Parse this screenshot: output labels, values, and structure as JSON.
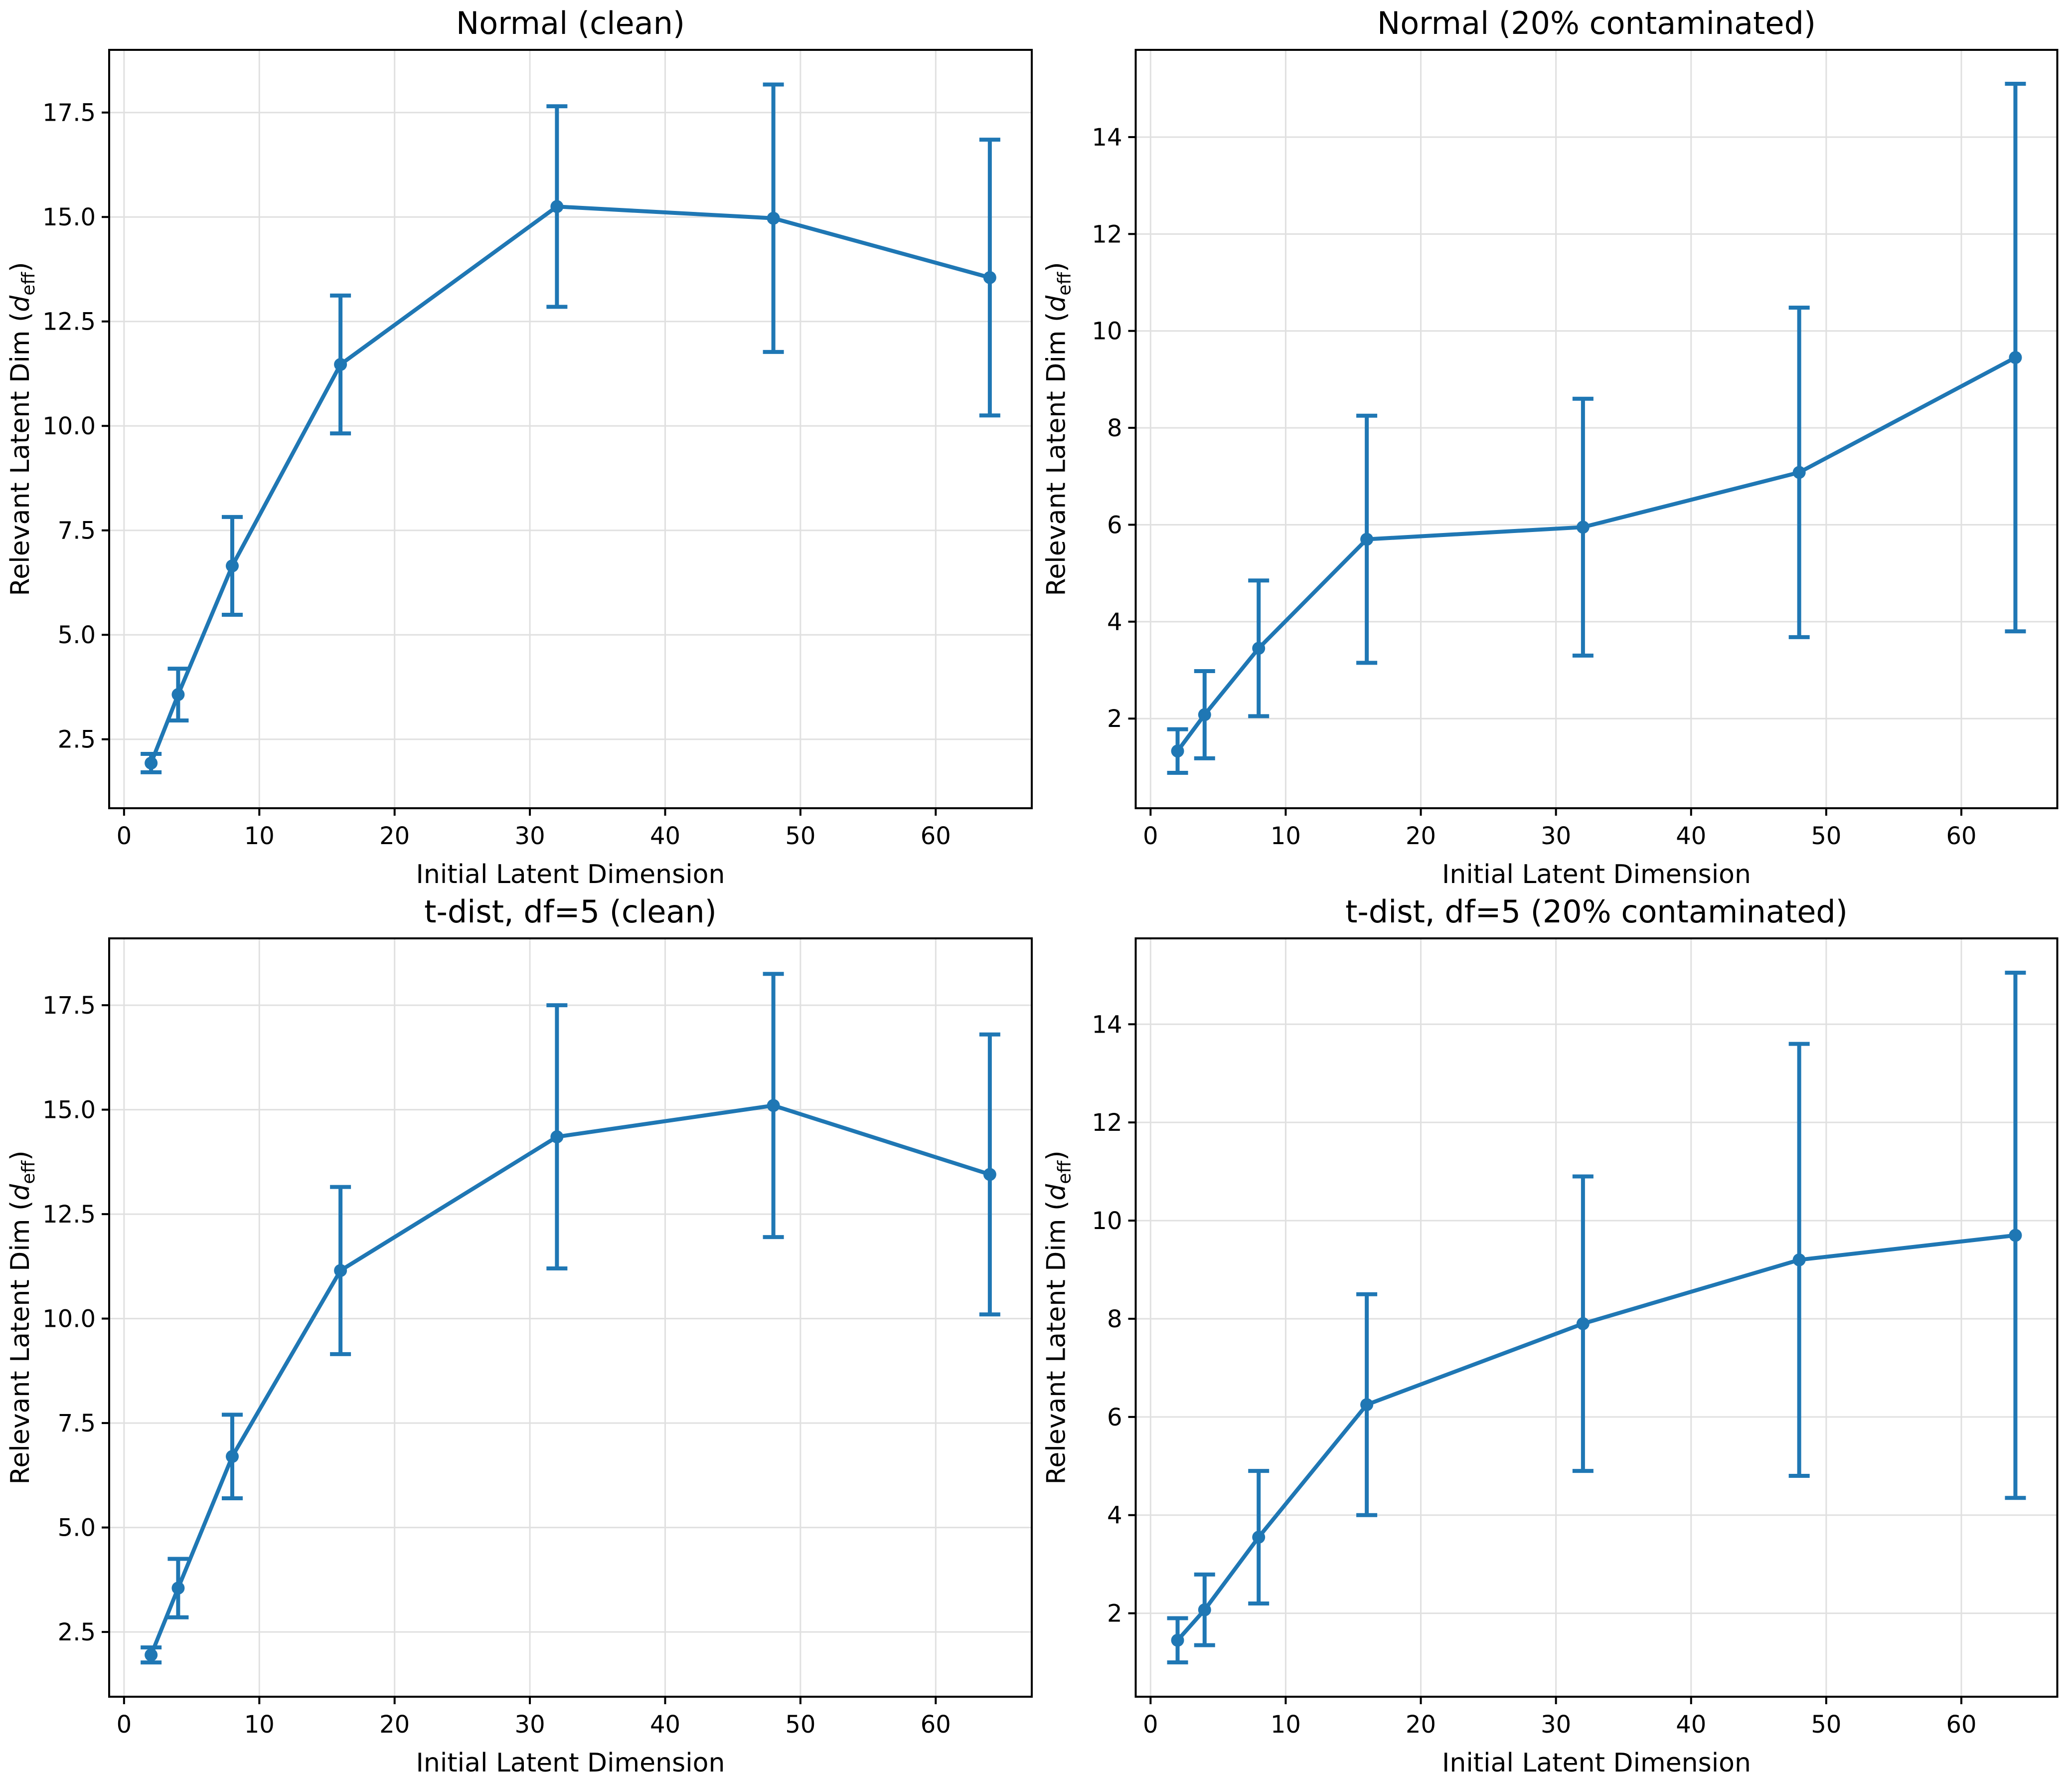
{
  "figure": {
    "background": "#ffffff",
    "accent_color": "#1f77b4",
    "grid_color": "#e0e0e0",
    "spine_color": "#000000",
    "layout": "2x2 grid of errorbar line plots"
  },
  "chart_data": [
    {
      "type": "line",
      "name": "normal-clean",
      "title": "Normal (clean)",
      "xlabel": "Initial Latent Dimension",
      "ylabel": "Relevant Latent Dim (d_eff)",
      "ylabel_parts": {
        "prefix": "Relevant Latent Dim (",
        "var": "d",
        "sub": "eff",
        "suffix": ")"
      },
      "x": [
        2,
        4,
        8,
        16,
        32,
        48,
        64
      ],
      "y": [
        1.93,
        3.57,
        6.65,
        11.47,
        15.25,
        14.97,
        13.55
      ],
      "yerr": [
        0.22,
        0.62,
        1.17,
        1.65,
        2.4,
        3.2,
        3.3
      ],
      "xticks": [
        0,
        10,
        20,
        30,
        40,
        50,
        60
      ],
      "xtick_labels": [
        "0",
        "10",
        "20",
        "30",
        "40",
        "50",
        "60"
      ],
      "yticks": [
        2.5,
        5.0,
        7.5,
        10.0,
        12.5,
        15.0,
        17.5
      ],
      "ytick_labels": [
        "2.5",
        "5.0",
        "7.5",
        "10.0",
        "12.5",
        "15.0",
        "17.5"
      ],
      "xlim": [
        -1.1,
        67.1
      ],
      "ylim": [
        0.85,
        19.0
      ],
      "grid": true,
      "legend": null,
      "line_color": "#1f77b4",
      "marker": "o"
    },
    {
      "type": "line",
      "name": "normal-contaminated",
      "title": "Normal (20% contaminated)",
      "xlabel": "Initial Latent Dimension",
      "ylabel": "Relevant Latent Dim (d_eff)",
      "ylabel_parts": {
        "prefix": "Relevant Latent Dim (",
        "var": "d",
        "sub": "eff",
        "suffix": ")"
      },
      "x": [
        2,
        4,
        8,
        16,
        32,
        48,
        64
      ],
      "y": [
        1.33,
        2.08,
        3.45,
        5.7,
        5.95,
        7.08,
        9.45
      ],
      "yerr": [
        0.45,
        0.9,
        1.4,
        2.55,
        2.65,
        3.4,
        5.65
      ],
      "xticks": [
        0,
        10,
        20,
        30,
        40,
        50,
        60
      ],
      "xtick_labels": [
        "0",
        "10",
        "20",
        "30",
        "40",
        "50",
        "60"
      ],
      "yticks": [
        2,
        4,
        6,
        8,
        10,
        12,
        14
      ],
      "ytick_labels": [
        "2",
        "4",
        "6",
        "8",
        "10",
        "12",
        "14"
      ],
      "xlim": [
        -1.1,
        67.1
      ],
      "ylim": [
        0.15,
        15.8
      ],
      "grid": true,
      "legend": null,
      "line_color": "#1f77b4",
      "marker": "o"
    },
    {
      "type": "line",
      "name": "tdist-clean",
      "title": "t-dist, df=5 (clean)",
      "xlabel": "Initial Latent Dimension",
      "ylabel": "Relevant Latent Dim (d_eff)",
      "ylabel_parts": {
        "prefix": "Relevant Latent Dim (",
        "var": "d",
        "sub": "eff",
        "suffix": ")"
      },
      "x": [
        2,
        4,
        8,
        16,
        32,
        48,
        64
      ],
      "y": [
        1.95,
        3.55,
        6.7,
        11.15,
        14.35,
        15.1,
        13.45
      ],
      "yerr": [
        0.18,
        0.7,
        1.0,
        2.0,
        3.15,
        3.15,
        3.35
      ],
      "xticks": [
        0,
        10,
        20,
        30,
        40,
        50,
        60
      ],
      "xtick_labels": [
        "0",
        "10",
        "20",
        "30",
        "40",
        "50",
        "60"
      ],
      "yticks": [
        2.5,
        5.0,
        7.5,
        10.0,
        12.5,
        15.0,
        17.5
      ],
      "ytick_labels": [
        "2.5",
        "5.0",
        "7.5",
        "10.0",
        "12.5",
        "15.0",
        "17.5"
      ],
      "xlim": [
        -1.1,
        67.1
      ],
      "ylim": [
        0.95,
        19.1
      ],
      "grid": true,
      "legend": null,
      "line_color": "#1f77b4",
      "marker": "o"
    },
    {
      "type": "line",
      "name": "tdist-contaminated",
      "title": "t-dist, df=5 (20% contaminated)",
      "xlabel": "Initial Latent Dimension",
      "ylabel": "Relevant Latent Dim (d_eff)",
      "ylabel_parts": {
        "prefix": "Relevant Latent Dim (",
        "var": "d",
        "sub": "eff",
        "suffix": ")"
      },
      "x": [
        2,
        4,
        8,
        16,
        32,
        48,
        64
      ],
      "y": [
        1.45,
        2.07,
        3.55,
        6.25,
        7.9,
        9.2,
        9.7
      ],
      "yerr": [
        0.45,
        0.72,
        1.35,
        2.25,
        3.0,
        4.4,
        5.35
      ],
      "xticks": [
        0,
        10,
        20,
        30,
        40,
        50,
        60
      ],
      "xtick_labels": [
        "0",
        "10",
        "20",
        "30",
        "40",
        "50",
        "60"
      ],
      "yticks": [
        2,
        4,
        6,
        8,
        10,
        12,
        14
      ],
      "ytick_labels": [
        "2",
        "4",
        "6",
        "8",
        "10",
        "12",
        "14"
      ],
      "xlim": [
        -1.1,
        67.1
      ],
      "ylim": [
        0.3,
        15.75
      ],
      "grid": true,
      "legend": null,
      "line_color": "#1f77b4",
      "marker": "o"
    }
  ]
}
